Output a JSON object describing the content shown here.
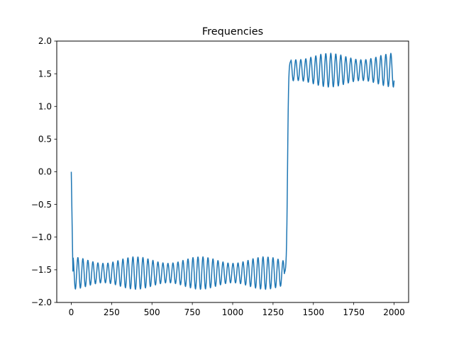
{
  "chart_data": {
    "type": "line",
    "title": "Frequencies",
    "xlabel": "",
    "ylabel": "",
    "xlim": [
      -90,
      2090
    ],
    "ylim": [
      -2.0,
      2.0
    ],
    "x_ticks": [
      0,
      250,
      500,
      750,
      1000,
      1250,
      1500,
      1750,
      2000
    ],
    "x_tick_labels": [
      "0",
      "250",
      "500",
      "750",
      "1000",
      "1250",
      "1500",
      "1750",
      "2000"
    ],
    "y_ticks": [
      -2.0,
      -1.5,
      -1.0,
      -0.5,
      0.0,
      0.5,
      1.0,
      1.5,
      2.0
    ],
    "y_tick_labels": [
      "−2.0",
      "−1.5",
      "−1.0",
      "−0.5",
      "0.0",
      "0.5",
      "1.0",
      "1.5",
      "2.0"
    ],
    "grid": false,
    "series": [
      {
        "color": "#1f77b4",
        "segments": [
          {
            "x_start": 0,
            "x_end": 10,
            "center": -0.76,
            "amplitude": 0.76,
            "period": 20,
            "beat_period": 1,
            "beat_amplitude": 0
          },
          {
            "x_start": 10,
            "x_end": 1320,
            "center": -1.55,
            "amplitude": 0.2,
            "period": 31,
            "beat_period": 400,
            "beat_amplitude": 0.05
          },
          {
            "x_start": 1320,
            "x_end": 1360,
            "center": 0.0,
            "amplitude": 1.6,
            "period": 80,
            "beat_period": 1,
            "beat_amplitude": 0
          },
          {
            "x_start": 1360,
            "x_end": 2000,
            "center": 1.555,
            "amplitude": 0.21,
            "period": 31,
            "beat_period": 400,
            "beat_amplitude": 0.05
          }
        ],
        "sample_points": [
          [
            0,
            0.0
          ],
          [
            5,
            -1.3
          ],
          [
            10,
            -1.52
          ],
          [
            20,
            -1.4
          ],
          [
            30,
            -1.25
          ],
          [
            50,
            -1.72
          ],
          [
            300,
            -1.55
          ],
          [
            700,
            -1.55
          ],
          [
            1000,
            -1.55
          ],
          [
            1300,
            -1.55
          ],
          [
            1330,
            -1.05
          ],
          [
            1345,
            0.7
          ],
          [
            1355,
            1.45
          ],
          [
            1370,
            1.7
          ],
          [
            1500,
            1.55
          ],
          [
            1750,
            1.55
          ],
          [
            2000,
            1.32
          ]
        ]
      }
    ]
  }
}
